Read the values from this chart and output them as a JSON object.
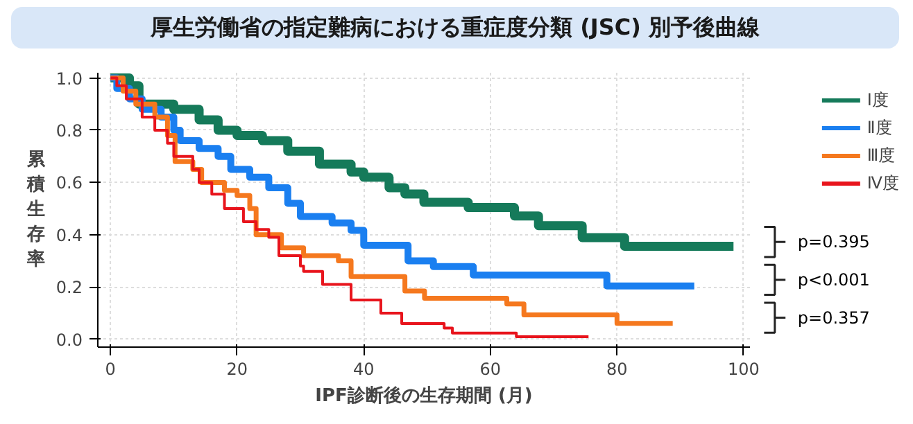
{
  "chart_data": {
    "type": "step",
    "title": "厚生労働省の指定難病における重症度分類 (JSC) 別予後曲線",
    "xlabel": "IPF診断後の生存期間 (月)",
    "ylabel": "累積生存率",
    "xlim": [
      -2,
      101
    ],
    "ylim": [
      -0.03,
      1.02
    ],
    "xticks": [
      0,
      20,
      40,
      60,
      80,
      100
    ],
    "yticks": [
      {
        "value": 0,
        "label": "0.0"
      },
      {
        "value": 0.2,
        "label": "0.2"
      },
      {
        "value": 0.4,
        "label": "0.4"
      },
      {
        "value": 0.6,
        "label": "0.6"
      },
      {
        "value": 0.8,
        "label": "0.8"
      },
      {
        "value": 1,
        "label": "1.0"
      }
    ],
    "grid": true,
    "legend": "top right",
    "line_style": "solid",
    "series": [
      {
        "name": "Ⅰ度",
        "color": "#157a5a",
        "x": [
          0,
          3,
          4.5,
          10,
          14,
          17,
          20,
          24,
          28,
          33,
          38,
          40,
          44,
          46.5,
          49.5,
          56.5,
          63.8,
          67.6,
          74.5,
          81.2,
          98.4
        ],
        "values": [
          1.0,
          0.97,
          0.9,
          0.88,
          0.84,
          0.8,
          0.78,
          0.76,
          0.72,
          0.67,
          0.64,
          0.62,
          0.58,
          0.556,
          0.524,
          0.504,
          0.472,
          0.435,
          0.389,
          0.356,
          0.356
        ]
      },
      {
        "name": "Ⅱ度",
        "color": "#1a7ff0",
        "x": [
          0,
          1,
          3,
          5,
          8,
          10,
          11,
          14,
          17,
          19,
          22,
          25,
          28,
          30,
          35,
          38,
          40,
          47,
          51,
          57.3,
          78.4,
          92.2
        ],
        "values": [
          1.0,
          0.96,
          0.92,
          0.88,
          0.85,
          0.8,
          0.76,
          0.73,
          0.7,
          0.65,
          0.62,
          0.58,
          0.52,
          0.47,
          0.445,
          0.417,
          0.36,
          0.3,
          0.278,
          0.246,
          0.204,
          0.204
        ]
      },
      {
        "name": "Ⅲ度",
        "color": "#f5781e",
        "x": [
          0,
          2,
          4,
          7,
          9,
          10.2,
          13,
          14.4,
          18,
          20,
          22,
          23,
          27,
          30.5,
          36,
          38,
          45,
          46.5,
          49.6,
          62.6,
          65.3,
          80,
          88.8
        ],
        "values": [
          1.0,
          0.95,
          0.9,
          0.85,
          0.78,
          0.68,
          0.65,
          0.6,
          0.57,
          0.55,
          0.5,
          0.4,
          0.35,
          0.32,
          0.3,
          0.24,
          0.24,
          0.185,
          0.157,
          0.135,
          0.093,
          0.061,
          0.061
        ]
      },
      {
        "name": "Ⅳ度",
        "color": "#e8141c",
        "x": [
          0,
          1,
          2.5,
          5,
          7,
          9,
          10,
          13,
          14,
          16,
          18,
          21,
          23,
          25,
          26.6,
          30,
          30.5,
          33.5,
          38,
          42.7,
          46,
          52.7,
          54,
          64.1,
          75.5
        ],
        "values": [
          1.0,
          0.97,
          0.92,
          0.85,
          0.8,
          0.75,
          0.7,
          0.65,
          0.6,
          0.555,
          0.5,
          0.45,
          0.42,
          0.39,
          0.32,
          0.28,
          0.26,
          0.21,
          0.15,
          0.1,
          0.06,
          0.043,
          0.024,
          0.01,
          0.01
        ]
      }
    ],
    "annotations": [
      "p=0.395",
      "p<0.001",
      "p=0.357"
    ]
  }
}
